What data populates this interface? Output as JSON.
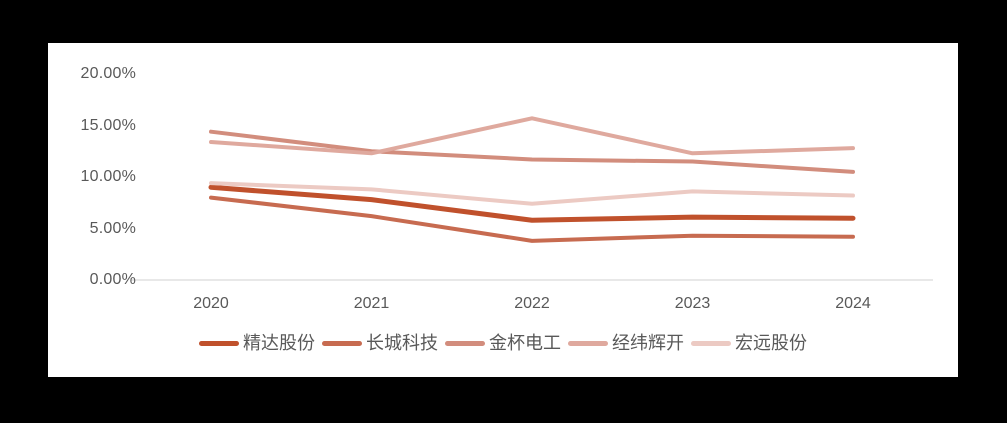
{
  "canvas": {
    "page_background": "#000000",
    "panel_background": "#ffffff"
  },
  "axis_style": {
    "tick_label_color": "#595959",
    "axis_line_color": "#d9d9d9"
  },
  "chart_data": {
    "type": "line",
    "title": "",
    "xlabel": "",
    "ylabel": "",
    "categories": [
      "2020",
      "2021",
      "2022",
      "2023",
      "2024"
    ],
    "series": [
      {
        "name": "精达股份",
        "color": "#c0512c",
        "values": [
          9.0,
          7.8,
          5.8,
          6.1,
          6.0
        ]
      },
      {
        "name": "长城科技",
        "color": "#c76b50",
        "values": [
          8.0,
          6.2,
          3.8,
          4.3,
          4.2
        ]
      },
      {
        "name": "金杯电工",
        "color": "#d28d7d",
        "values": [
          14.4,
          12.5,
          11.7,
          11.5,
          10.5
        ]
      },
      {
        "name": "经纬辉开",
        "color": "#dfa99e",
        "values": [
          13.4,
          12.3,
          15.7,
          12.3,
          12.8
        ]
      },
      {
        "name": "宏远股份",
        "color": "#eccac3",
        "values": [
          9.4,
          8.8,
          7.4,
          8.6,
          8.2
        ]
      }
    ],
    "ylim": [
      0,
      20
    ],
    "y_ticks": [
      {
        "value": 20,
        "label": "20.00%"
      },
      {
        "value": 15,
        "label": "15.00%"
      },
      {
        "value": 10,
        "label": "10.00%"
      },
      {
        "value": 5,
        "label": "5.00%"
      },
      {
        "value": 0,
        "label": "0.00%"
      }
    ],
    "grid": false,
    "legend_position": "bottom"
  }
}
